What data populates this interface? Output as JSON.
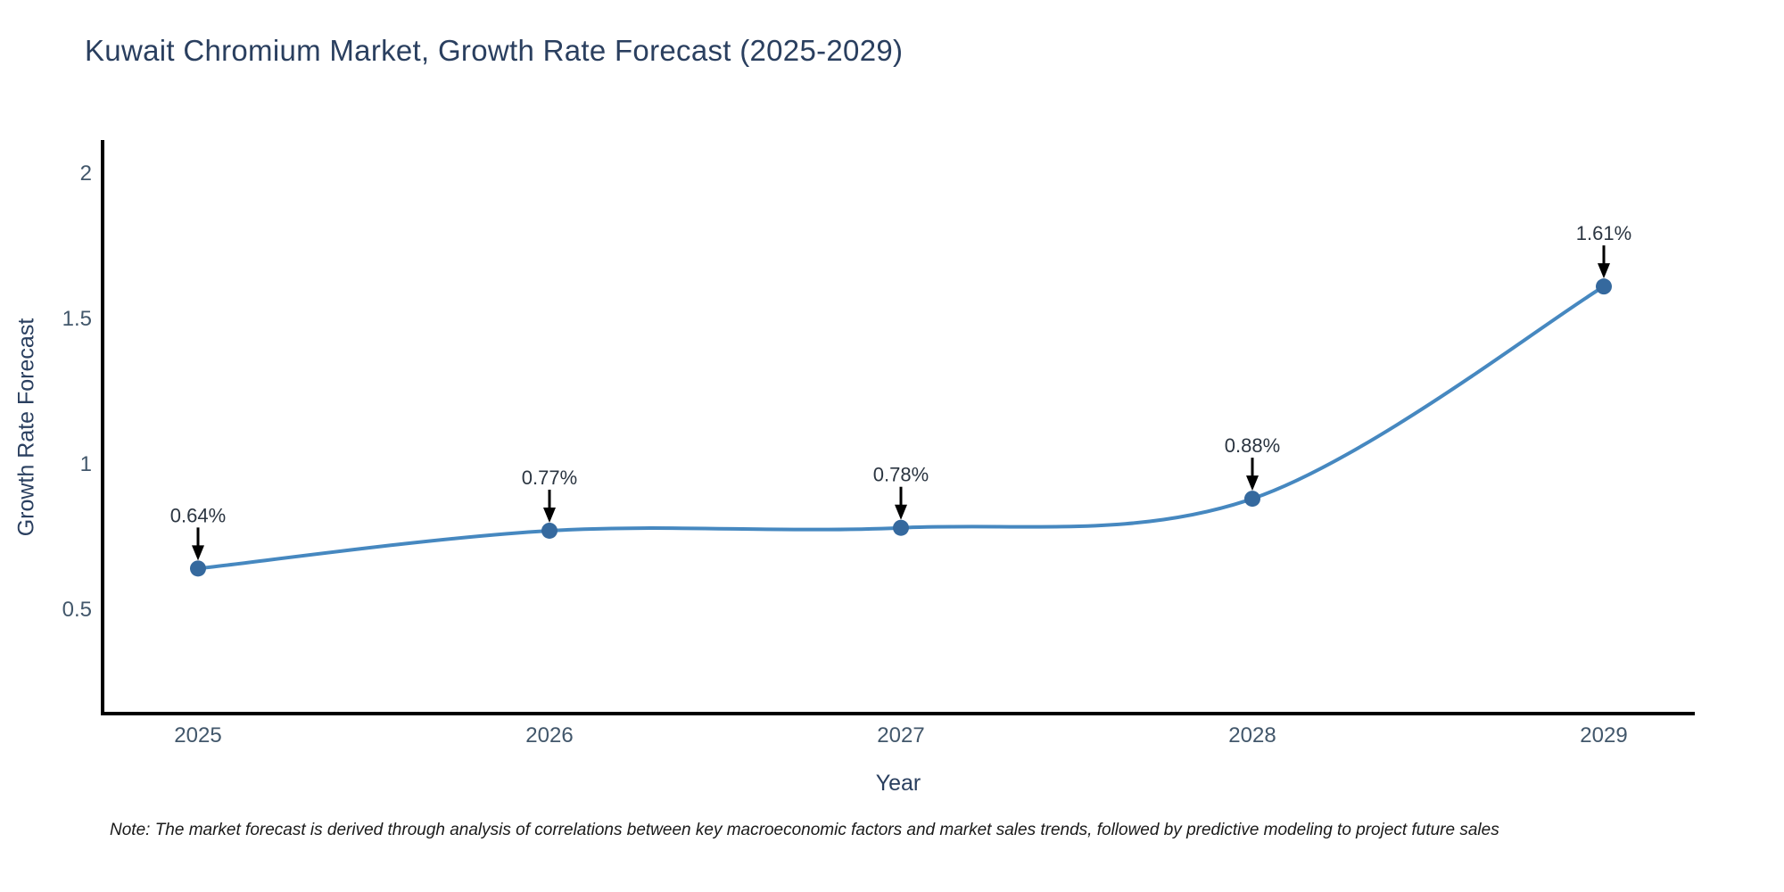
{
  "title": "Kuwait Chromium Market, Growth Rate Forecast (2025-2029)",
  "note": "Note: The market forecast is derived through analysis of correlations between key macroeconomic factors and market sales trends, followed by predictive modeling to project future sales",
  "chart_data": {
    "type": "line",
    "title": "Kuwait Chromium Market, Growth Rate Forecast (2025-2029)",
    "xlabel": "Year",
    "ylabel": "Growth Rate Forecast",
    "x": [
      2025,
      2026,
      2027,
      2028,
      2029
    ],
    "values": [
      0.64,
      0.77,
      0.78,
      0.88,
      1.61
    ],
    "point_labels": [
      "0.64%",
      "0.77%",
      "0.78%",
      "0.88%",
      "1.61%"
    ],
    "yticks": [
      0.5,
      1,
      1.5,
      2
    ],
    "xticks": [
      "2025",
      "2026",
      "2027",
      "2028",
      "2029"
    ],
    "ylim": [
      0.14,
      2.11
    ],
    "grid": false,
    "legend": "none",
    "line_shape": "spline",
    "colors": {
      "line": "#4688c0",
      "marker": "#35699e",
      "axis": "#000000",
      "title_text": "#2a3f5f",
      "tick_text": "#42576b",
      "annotation_text": "#2b3541",
      "arrow": "#000000"
    }
  }
}
